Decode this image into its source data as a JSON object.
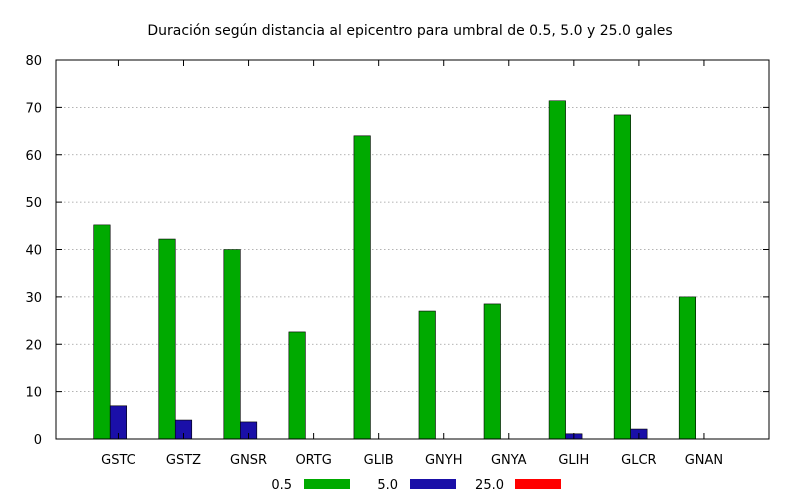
{
  "chart_data": {
    "type": "bar",
    "title": "Duración según distancia al epicentro para umbral de 0.5, 5.0 y 25.0 gales",
    "xlabel": "",
    "ylabel": "",
    "ylim": [
      0,
      80
    ],
    "yticks": [
      0,
      10,
      20,
      30,
      40,
      50,
      60,
      70,
      80
    ],
    "grid": true,
    "legend_position": "bottom",
    "categories": [
      "GSTC",
      "GSTZ",
      "GNSR",
      "ORTG",
      "GLIB",
      "GNYH",
      "GNYA",
      "GLIH",
      "GLCR",
      "GNAN"
    ],
    "series": [
      {
        "name": "0.5",
        "color": "#00aa00",
        "values": [
          45.2,
          42.2,
          40.0,
          22.6,
          64.0,
          27.0,
          28.5,
          71.4,
          68.4,
          30.0
        ]
      },
      {
        "name": "5.0",
        "color": "#1a0fa8",
        "values": [
          7.0,
          4.0,
          3.6,
          0,
          0,
          0,
          0,
          1.1,
          2.1,
          0
        ]
      },
      {
        "name": "25.0",
        "color": "#ff0000",
        "values": [
          0,
          0,
          0,
          0,
          0,
          0,
          0,
          0,
          0,
          0
        ]
      }
    ]
  }
}
